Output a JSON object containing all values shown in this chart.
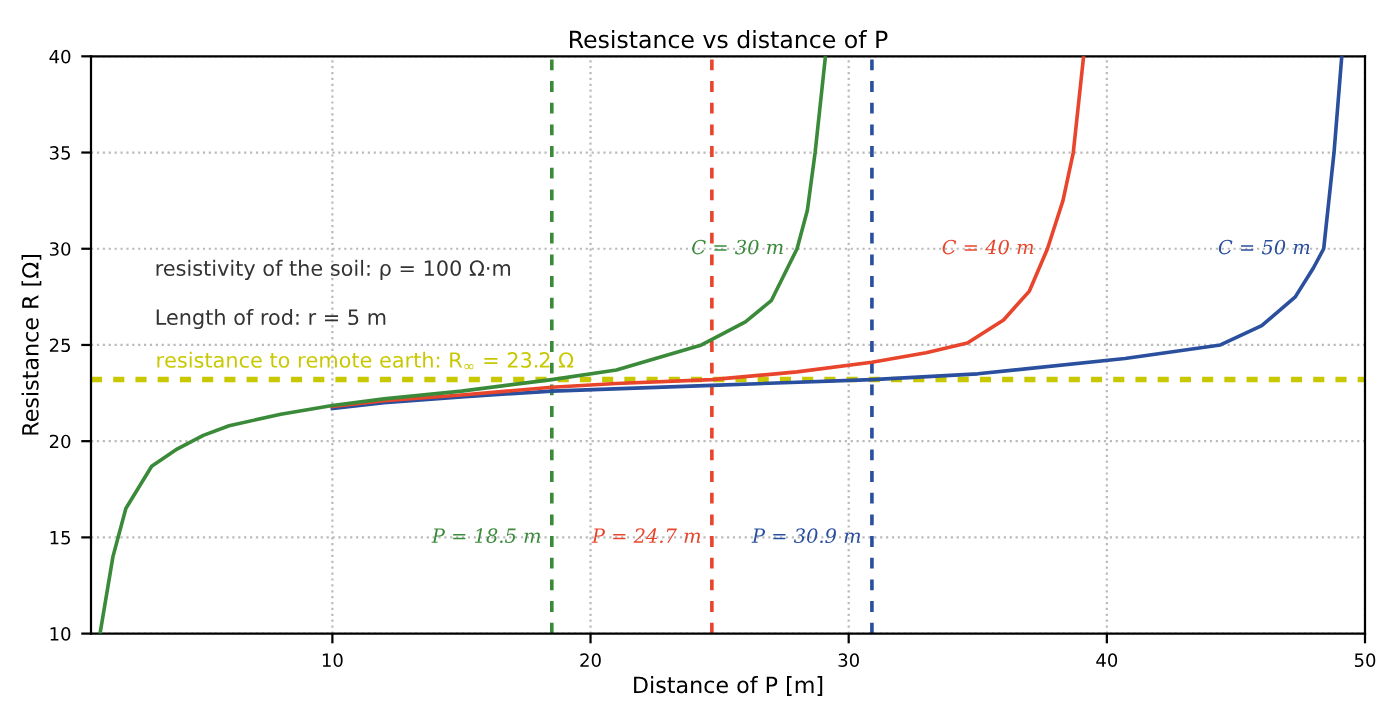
{
  "chart_data": {
    "type": "line",
    "title": "Resistance vs distance of P",
    "xlabel": "Distance of P [m]",
    "ylabel": "Resistance R [Ω]",
    "xlim": [
      0.65,
      50
    ],
    "xticks": [
      10,
      20,
      30,
      40,
      50
    ],
    "ylim": [
      10,
      40
    ],
    "yticks": [
      10,
      15,
      20,
      25,
      30,
      35,
      40
    ],
    "grid": true,
    "line_style": "solid",
    "marker": "none",
    "series": [
      {
        "name": "C = 30 m",
        "color": "#3a8a3a",
        "x": [
          1.0,
          1.5,
          2,
          3,
          4,
          5,
          6,
          8,
          10,
          12,
          15,
          18.5,
          21,
          24.3,
          26,
          27,
          28,
          28.4,
          28.7,
          29.1
        ],
        "values": [
          10,
          14,
          16.5,
          18.7,
          19.6,
          20.3,
          20.8,
          21.4,
          21.85,
          22.2,
          22.6,
          23.2,
          23.7,
          25,
          26.2,
          27.3,
          30,
          32,
          35,
          40
        ]
      },
      {
        "name": "C = 40 m",
        "color": "#e8452c",
        "x": [
          10,
          12,
          15,
          18.5,
          21,
          24.7,
          28,
          30.9,
          33,
          34.6,
          36,
          37,
          37.7,
          38.3,
          38.7,
          39.1
        ],
        "values": [
          21.8,
          22.1,
          22.4,
          22.8,
          23.0,
          23.2,
          23.6,
          24.1,
          24.6,
          25.1,
          26.3,
          27.8,
          30,
          32.5,
          35,
          40
        ]
      },
      {
        "name": "C = 50 m",
        "color": "#2a4f9e",
        "x": [
          10,
          12,
          15,
          18.5,
          24.7,
          30.9,
          35,
          40.7,
          44.4,
          46,
          47.3,
          48,
          48.4,
          48.8,
          49.1
        ],
        "values": [
          21.7,
          22.0,
          22.3,
          22.6,
          22.9,
          23.2,
          23.5,
          24.3,
          25,
          26,
          27.5,
          29,
          30,
          35,
          40
        ]
      }
    ],
    "ref_lines": [
      {
        "axis": "y",
        "value": 23.2,
        "label": "resistance to remote earth: R$_{∞}$ = 23.2 Ω",
        "color": "#c8c800",
        "line_style": "dashed"
      },
      {
        "axis": "x",
        "value": 18.5,
        "label": "P = 18.5 m",
        "color": "#3a8a3a",
        "line_style": "dashed"
      },
      {
        "axis": "x",
        "value": 24.7,
        "label": "P = 24.7 m",
        "color": "#e8452c",
        "line_style": "dashed"
      },
      {
        "axis": "x",
        "value": 30.9,
        "label": "P = 30.9 m",
        "color": "#2a4f9e",
        "line_style": "dashed"
      }
    ],
    "annotations": [
      "resistivity of the soil: ρ = 100 Ω·m",
      "Length of rod: r = 5 m"
    ]
  }
}
